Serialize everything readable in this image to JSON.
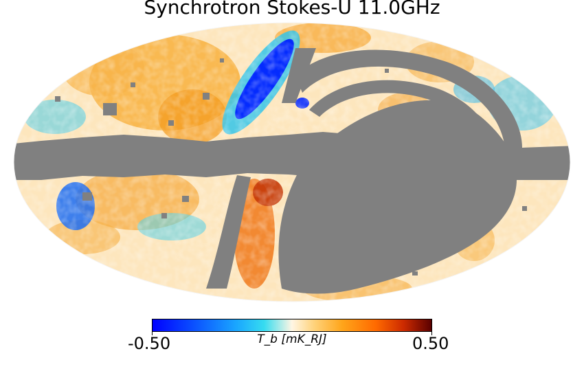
{
  "title": "Synchrotron Stokes-U 11.0GHz",
  "colorbar": {
    "min_label": "-0.50",
    "max_label": "0.50",
    "unit_label": "T_b [mK_RJ]",
    "min_value": -0.5,
    "max_value": 0.5,
    "colormap": "planck-style diverging (blue - white - orange - dark red)"
  },
  "map": {
    "projection": "mollweide",
    "masked_color": "#808080",
    "background_color": "#ffffff"
  }
}
